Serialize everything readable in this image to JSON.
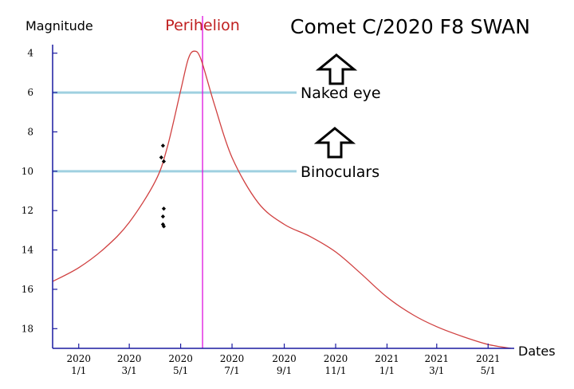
{
  "chart_data": {
    "type": "line",
    "title": "Comet C/2020 F8 SWAN",
    "xlabel": "Dates",
    "ylabel": "Magnitude",
    "y_axis_inverted": true,
    "ylim": [
      3,
      19
    ],
    "xlim": [
      "2019-12-01",
      "2021-06-01"
    ],
    "grid": false,
    "yticks": [
      4,
      6,
      8,
      10,
      12,
      14,
      16,
      18
    ],
    "xticks": [
      {
        "date": "2020-01-01",
        "year": "2020",
        "md": "1/1"
      },
      {
        "date": "2020-03-01",
        "year": "2020",
        "md": "3/1"
      },
      {
        "date": "2020-05-01",
        "year": "2020",
        "md": "5/1"
      },
      {
        "date": "2020-07-01",
        "year": "2020",
        "md": "7/1"
      },
      {
        "date": "2020-09-01",
        "year": "2020",
        "md": "9/1"
      },
      {
        "date": "2020-11-01",
        "year": "2020",
        "md": "11/1"
      },
      {
        "date": "2021-01-01",
        "year": "2021",
        "md": "1/1"
      },
      {
        "date": "2021-03-01",
        "year": "2021",
        "md": "3/1"
      },
      {
        "date": "2021-05-01",
        "year": "2021",
        "md": "5/1"
      }
    ],
    "series": [
      {
        "color": "#d04040",
        "points": [
          {
            "x": "2019-12-01",
            "y": 15.6
          },
          {
            "x": "2020-01-01",
            "y": 14.9
          },
          {
            "x": "2020-02-01",
            "y": 13.9
          },
          {
            "x": "2020-03-01",
            "y": 12.6
          },
          {
            "x": "2020-04-01",
            "y": 10.5
          },
          {
            "x": "2020-04-15",
            "y": 8.8
          },
          {
            "x": "2020-05-01",
            "y": 5.9
          },
          {
            "x": "2020-05-10",
            "y": 4.3
          },
          {
            "x": "2020-05-17",
            "y": 3.9
          },
          {
            "x": "2020-05-25",
            "y": 4.3
          },
          {
            "x": "2020-06-10",
            "y": 6.6
          },
          {
            "x": "2020-07-01",
            "y": 9.3
          },
          {
            "x": "2020-08-01",
            "y": 11.6
          },
          {
            "x": "2020-09-01",
            "y": 12.7
          },
          {
            "x": "2020-10-01",
            "y": 13.3
          },
          {
            "x": "2020-11-01",
            "y": 14.1
          },
          {
            "x": "2020-12-01",
            "y": 15.2
          },
          {
            "x": "2021-01-01",
            "y": 16.4
          },
          {
            "x": "2021-02-01",
            "y": 17.3
          },
          {
            "x": "2021-03-01",
            "y": 17.9
          },
          {
            "x": "2021-04-01",
            "y": 18.4
          },
          {
            "x": "2021-05-01",
            "y": 18.8
          },
          {
            "x": "2021-05-28",
            "y": 19.0
          }
        ]
      }
    ],
    "observations": [
      {
        "x": "2020-04-10",
        "y": 8.7
      },
      {
        "x": "2020-04-08",
        "y": 9.3
      },
      {
        "x": "2020-04-11",
        "y": 9.5
      },
      {
        "x": "2020-04-11",
        "y": 11.9
      },
      {
        "x": "2020-04-10",
        "y": 12.3
      },
      {
        "x": "2020-04-10",
        "y": 12.7
      },
      {
        "x": "2020-04-11",
        "y": 12.8
      }
    ],
    "perihelion": {
      "x": "2020-05-27",
      "label": "Perihelion",
      "color": "#e010e0"
    },
    "thresholds": [
      {
        "y": 6,
        "label": "Naked eye",
        "color": "#9fd0e0"
      },
      {
        "y": 10,
        "label": "Binoculars",
        "color": "#9fd0e0"
      }
    ],
    "annotations": [
      {
        "type": "up-arrow",
        "near": "Naked eye"
      },
      {
        "type": "up-arrow",
        "near": "Binoculars"
      }
    ],
    "axis_color": "#1a1aa0",
    "title_color": "#000000",
    "perihelion_label_color": "#c02020"
  }
}
